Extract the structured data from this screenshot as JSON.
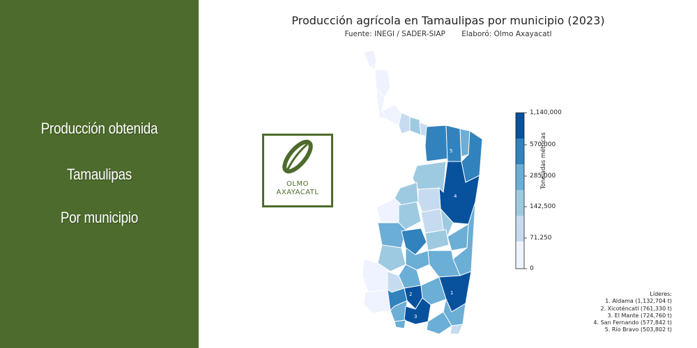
{
  "sidebar": {
    "line1": "Producción obtenida",
    "line2": "Tamaulipas",
    "line3": "Por municipio",
    "color": "#4d6b2c"
  },
  "map_title": "Producción agrícola en Tamaulipas por municipio (2023)",
  "source": "Fuente: INEGI / SADER-SIAP",
  "credit": "Elaboró: Olmo Axayacatl",
  "logo": {
    "line1": "OLMO",
    "line2": "AXAYACATL"
  },
  "colorbar": {
    "label": "Toneladas métricas",
    "ticks": [
      "1,140,000",
      "570,000",
      "285,000",
      "142,500",
      "71,250",
      "0"
    ],
    "colors": [
      "#08519c",
      "#3182bd",
      "#6baed6",
      "#9ecae1",
      "#c6dbef",
      "#eff3ff"
    ]
  },
  "leaders": {
    "title": "Líderes:",
    "items": [
      "1. Aldama (1,132,704 t)",
      "2. Xicoténcatl (761,330 t)",
      "3. El Mante (724,760 t)",
      "4. San Fernando (577,842 t)",
      "5. Río Bravo (503,802 t)"
    ]
  },
  "map_labels": [
    "1",
    "2",
    "3",
    "4",
    "5"
  ]
}
